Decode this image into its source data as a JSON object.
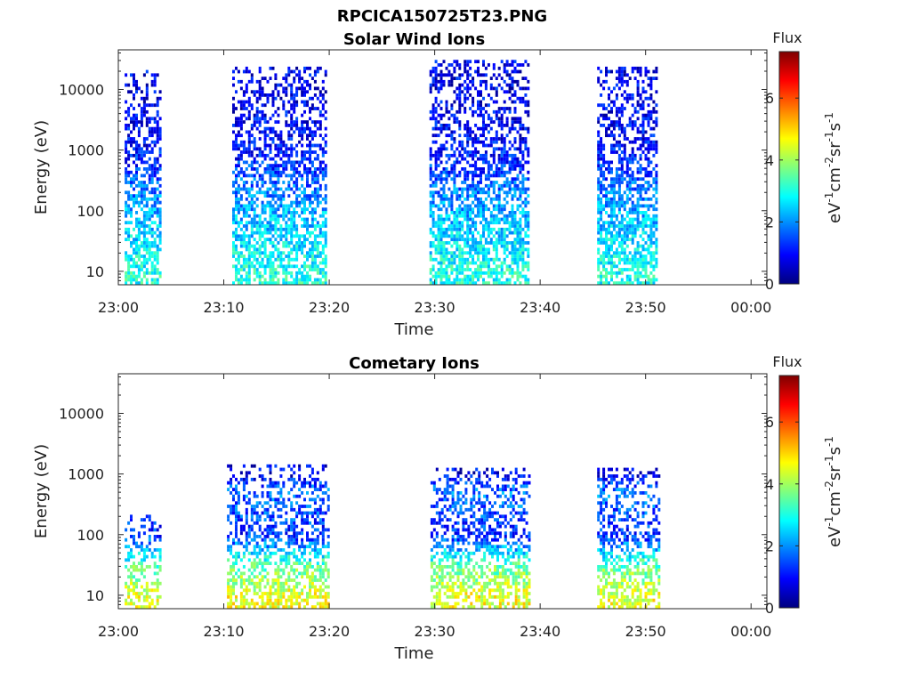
{
  "figure": {
    "title": "RPCICA150725T23.PNG"
  },
  "colormap": {
    "name": "jet",
    "stops": [
      "#00007f",
      "#0000ff",
      "#007fff",
      "#00ffff",
      "#7fff7f",
      "#ffff00",
      "#ff7f00",
      "#ff0000",
      "#7f0000"
    ]
  },
  "chart_data": [
    {
      "type": "heatmap",
      "title": "Solar Wind Ions",
      "xlabel": "Time",
      "ylabel": "Energy (eV)",
      "x_tick_labels": [
        "23:00",
        "23:10",
        "23:20",
        "23:30",
        "23:40",
        "23:50",
        "00:00"
      ],
      "x_tick_minutes": [
        0,
        10,
        20,
        30,
        40,
        50,
        60
      ],
      "xlim_minutes": [
        0,
        61.5
      ],
      "y_scale": "log",
      "y_tick_labels": [
        "10",
        "100",
        "1000",
        "10000"
      ],
      "y_tick_values": [
        10,
        100,
        1000,
        10000
      ],
      "ylim": [
        6,
        45000
      ],
      "colorbar": {
        "label": "Flux",
        "units": "eV-1cm-2sr-1s-1",
        "range": [
          0,
          7.5
        ],
        "tick_labels": [
          "0",
          "2",
          "4",
          "6"
        ],
        "tick_values": [
          0,
          2,
          4,
          6
        ]
      },
      "bursts": [
        {
          "t_start_minutes": 0.6,
          "t_end_minutes": 4.0,
          "energy_min_eV": 6,
          "energy_max_eV": 20000
        },
        {
          "t_start_minutes": 10.8,
          "t_end_minutes": 19.8,
          "energy_min_eV": 6,
          "energy_max_eV": 25000
        },
        {
          "t_start_minutes": 29.5,
          "t_end_minutes": 38.9,
          "energy_min_eV": 6,
          "energy_max_eV": 30000
        },
        {
          "t_start_minutes": 45.4,
          "t_end_minutes": 51.1,
          "energy_min_eV": 6,
          "energy_max_eV": 25000
        }
      ],
      "flux_profile_by_energy": [
        {
          "energy_eV": 10,
          "flux": 3.0
        },
        {
          "energy_eV": 100,
          "flux": 2.2
        },
        {
          "energy_eV": 1000,
          "flux": 1.0
        },
        {
          "energy_eV": 10000,
          "flux": 0.8
        }
      ]
    },
    {
      "type": "heatmap",
      "title": "Cometary Ions",
      "xlabel": "Time",
      "ylabel": "Energy (eV)",
      "x_tick_labels": [
        "23:00",
        "23:10",
        "23:20",
        "23:30",
        "23:40",
        "23:50",
        "00:00"
      ],
      "x_tick_minutes": [
        0,
        10,
        20,
        30,
        40,
        50,
        60
      ],
      "xlim_minutes": [
        0,
        61.5
      ],
      "y_scale": "log",
      "y_tick_labels": [
        "10",
        "100",
        "1000",
        "10000"
      ],
      "y_tick_values": [
        10,
        100,
        1000,
        10000
      ],
      "ylim": [
        6,
        45000
      ],
      "colorbar": {
        "label": "Flux",
        "units": "eV-1cm-2sr-1s-1",
        "range": [
          0,
          7.5
        ],
        "tick_labels": [
          "0",
          "2",
          "4",
          "6"
        ],
        "tick_values": [
          0,
          2,
          4,
          6
        ]
      },
      "bursts": [
        {
          "t_start_minutes": 0.6,
          "t_end_minutes": 4.0,
          "energy_min_eV": 6,
          "energy_max_eV": 200
        },
        {
          "t_start_minutes": 10.3,
          "t_end_minutes": 20.0,
          "energy_min_eV": 6,
          "energy_max_eV": 1500
        },
        {
          "t_start_minutes": 29.6,
          "t_end_minutes": 39.0,
          "energy_min_eV": 6,
          "energy_max_eV": 1300
        },
        {
          "t_start_minutes": 45.4,
          "t_end_minutes": 51.3,
          "energy_min_eV": 6,
          "energy_max_eV": 1300
        }
      ],
      "flux_profile_by_energy": [
        {
          "energy_eV": 10,
          "flux": 4.5
        },
        {
          "energy_eV": 30,
          "flux": 3.5
        },
        {
          "energy_eV": 100,
          "flux": 1.2
        },
        {
          "energy_eV": 500,
          "flux": 1.8
        },
        {
          "energy_eV": 1000,
          "flux": 0.8
        }
      ]
    }
  ]
}
